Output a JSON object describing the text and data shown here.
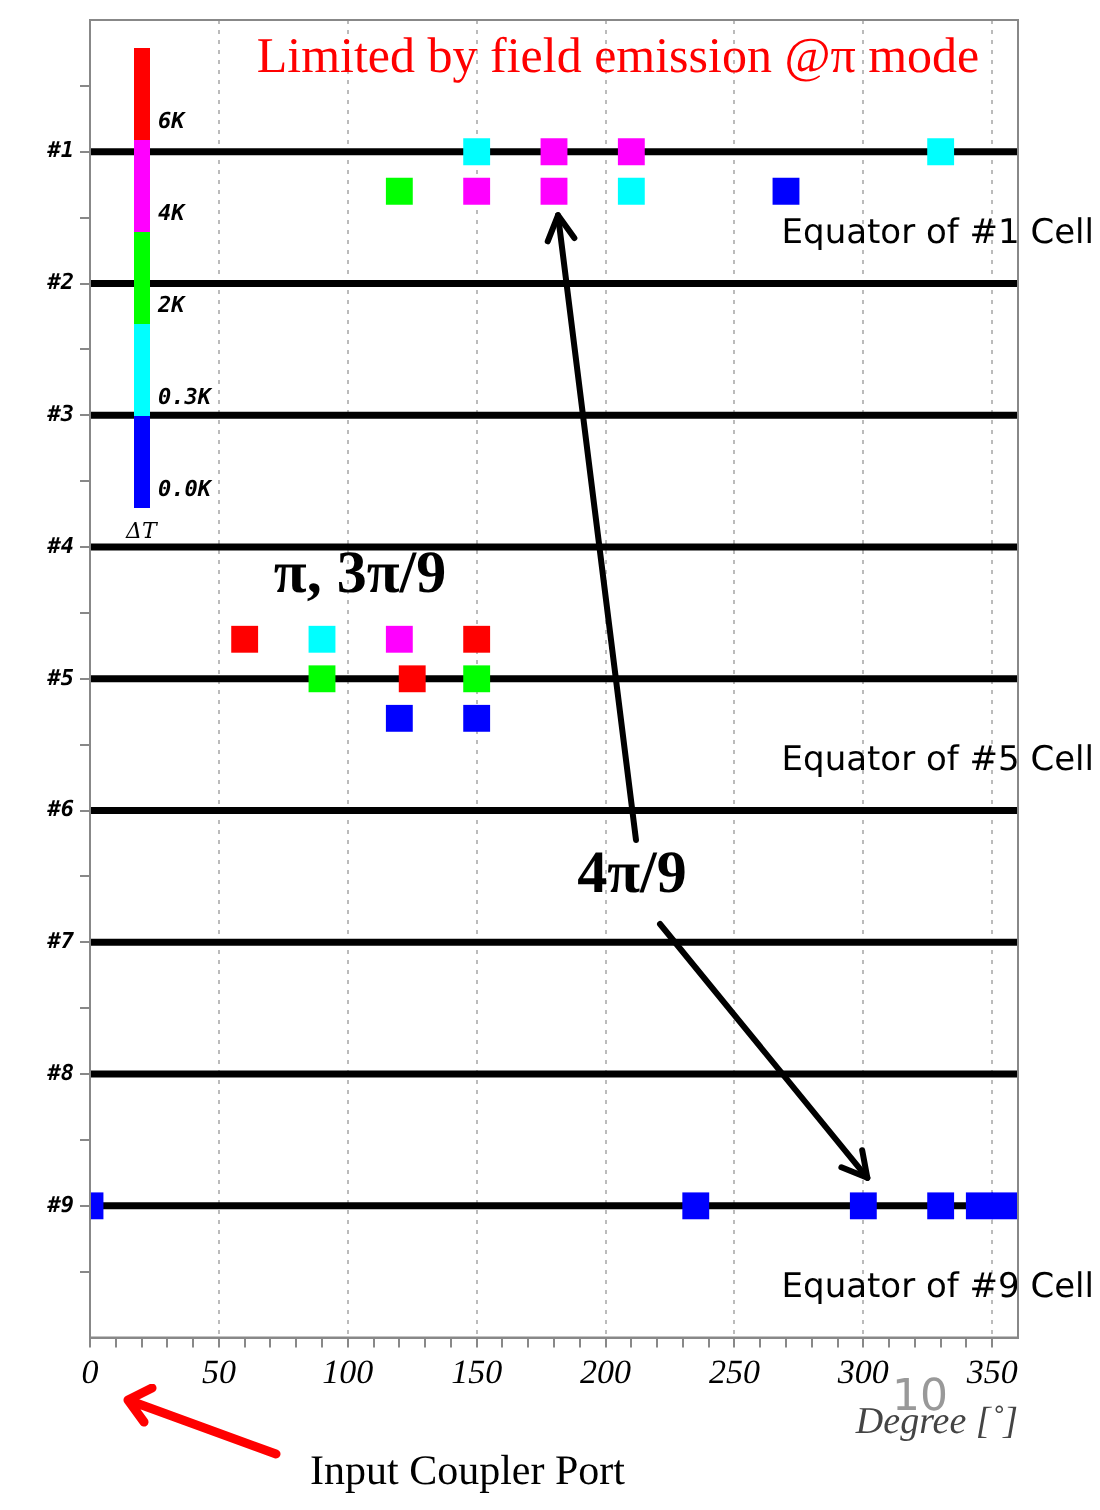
{
  "chart_data": {
    "type": "scatter",
    "xlabel": "Degree [˚]",
    "marker": "square",
    "legend": false,
    "grid": "x",
    "xlim": [
      0,
      360
    ],
    "xticks": [
      0,
      {
        "value": 10,
        "label": null
      },
      {
        "value": 20,
        "label": null
      },
      {
        "value": 30,
        "label": null
      },
      {
        "value": 40,
        "label": null
      },
      50,
      {
        "value": 60,
        "label": null
      },
      {
        "value": 70,
        "label": null
      },
      {
        "value": 80,
        "label": null
      },
      {
        "value": 90,
        "label": null
      },
      100,
      {
        "value": 110,
        "label": null
      },
      {
        "value": 120,
        "label": null
      },
      {
        "value": 130,
        "label": null
      },
      {
        "value": 140,
        "label": null
      },
      150,
      {
        "value": 160,
        "label": null
      },
      {
        "value": 170,
        "label": null
      },
      {
        "value": 180,
        "label": null
      },
      {
        "value": 190,
        "label": null
      },
      200,
      {
        "value": 210,
        "label": null
      },
      {
        "value": 220,
        "label": null
      },
      {
        "value": 230,
        "label": null
      },
      {
        "value": 240,
        "label": null
      },
      250,
      {
        "value": 260,
        "label": null
      },
      {
        "value": 270,
        "label": null
      },
      {
        "value": 280,
        "label": null
      },
      {
        "value": 290,
        "label": null
      },
      300,
      {
        "value": 310,
        "label": null
      },
      {
        "value": 320,
        "label": null
      },
      {
        "value": 330,
        "label": null
      },
      {
        "value": 340,
        "label": null
      },
      350
    ],
    "ylim": [
      10,
      0
    ],
    "yticks": [
      {
        "value": 0.5,
        "label": null
      },
      {
        "value": 1,
        "label": "#1"
      },
      {
        "value": 1.5,
        "label": null
      },
      {
        "value": 2,
        "label": "#2"
      },
      {
        "value": 2.5,
        "label": null
      },
      {
        "value": 3,
        "label": "#3"
      },
      {
        "value": 3.5,
        "label": null
      },
      {
        "value": 4,
        "label": "#4"
      },
      {
        "value": 4.5,
        "label": null
      },
      {
        "value": 5,
        "label": "#5"
      },
      {
        "value": 5.5,
        "label": null
      },
      {
        "value": 6,
        "label": "#6"
      },
      {
        "value": 6.5,
        "label": null
      },
      {
        "value": 7,
        "label": "#7"
      },
      {
        "value": 7.5,
        "label": null
      },
      {
        "value": 8,
        "label": "#8"
      },
      {
        "value": 8.5,
        "label": null
      },
      {
        "value": 9,
        "label": "#9"
      },
      {
        "value": 9.5,
        "label": null
      }
    ],
    "series": [
      {
        "color": "#0000ff",
        "x": [
          270,
          120,
          150,
          0,
          235,
          300,
          330,
          345,
          355
        ],
        "values": [
          1.3,
          5.3,
          5.3,
          9,
          9,
          9,
          9,
          9,
          9
        ]
      },
      {
        "color": "#00ffff",
        "x": [
          150,
          330,
          210,
          90
        ],
        "values": [
          1,
          1,
          1.3,
          4.7
        ]
      },
      {
        "color": "#00ff00",
        "x": [
          120,
          90,
          150
        ],
        "values": [
          1.3,
          5,
          5
        ]
      },
      {
        "color": "#ff00ff",
        "x": [
          180,
          210,
          150,
          180,
          120
        ],
        "values": [
          1,
          1,
          1.3,
          1.3,
          4.7
        ]
      },
      {
        "color": "#ff0000",
        "x": [
          60,
          150,
          125
        ],
        "values": [
          4.7,
          4.7,
          5
        ]
      }
    ],
    "ref_lines": [
      {
        "axis": "y",
        "value": 1,
        "label": "Equator of #1 Cell",
        "color": "#000000"
      },
      {
        "axis": "y",
        "value": 2,
        "color": "#000000"
      },
      {
        "axis": "y",
        "value": 3,
        "color": "#000000"
      },
      {
        "axis": "y",
        "value": 4,
        "color": "#000000"
      },
      {
        "axis": "y",
        "value": 5,
        "label": "Equator of #5 Cell",
        "color": "#000000"
      },
      {
        "axis": "y",
        "value": 6,
        "color": "#000000"
      },
      {
        "axis": "y",
        "value": 7,
        "color": "#000000"
      },
      {
        "axis": "y",
        "value": 8,
        "color": "#000000"
      },
      {
        "axis": "y",
        "value": 9,
        "label": "Equator of #9 Cell",
        "color": "#000000"
      }
    ],
    "annotations": [
      "Limited by field emission @π mode",
      "π, 3π/9",
      "4π/9",
      "Input Coupler Port",
      "10",
      "0.0K",
      "0.3K",
      "2K",
      "4K",
      "6K",
      "ΔT"
    ]
  }
}
